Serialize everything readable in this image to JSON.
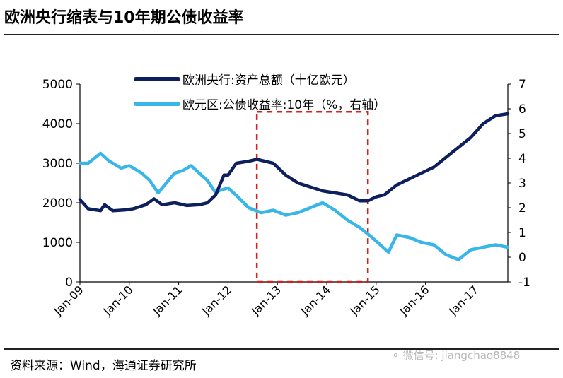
{
  "page": {
    "title": "欧洲央行缩表与10年期公债收益率",
    "source": "资料来源：Wind，海通证券研究所",
    "watermark": "微信号: jiangchao8848"
  },
  "colors": {
    "series_ecb": "#0d1f5c",
    "series_yield": "#38b6e8",
    "highlight_box": "#d62020",
    "axis": "#000000"
  },
  "chart_data": {
    "type": "line",
    "x_tick_labels": [
      "Jan-09",
      "Jan-10",
      "Jan-11",
      "Jan-12",
      "Jan-13",
      "Jan-14",
      "Jan-15",
      "Jan-16",
      "Jan-17"
    ],
    "y_left": {
      "ticks": [
        0,
        1000,
        2000,
        3000,
        4000,
        5000
      ],
      "ylim": [
        0,
        5000
      ]
    },
    "y_right": {
      "ticks": [
        -1,
        0,
        1,
        2,
        3,
        4,
        5,
        6,
        7
      ],
      "ylim": [
        -1,
        7
      ]
    },
    "xlim": [
      "2009-01",
      "2017-09"
    ],
    "highlight_box": {
      "x_range": [
        "2012-08",
        "2014-11"
      ],
      "y_range_left": [
        0,
        4300
      ],
      "style": "dashed"
    },
    "legend_position": "top-center",
    "series": [
      {
        "name": "欧洲央行:资产总额（十亿欧元）",
        "axis": "left",
        "points": [
          [
            "2009-01",
            2080
          ],
          [
            "2009-03",
            1850
          ],
          [
            "2009-06",
            1800
          ],
          [
            "2009-07",
            1950
          ],
          [
            "2009-09",
            1800
          ],
          [
            "2009-12",
            1820
          ],
          [
            "2010-02",
            1850
          ],
          [
            "2010-05",
            1950
          ],
          [
            "2010-07",
            2100
          ],
          [
            "2010-09",
            1950
          ],
          [
            "2010-12",
            2000
          ],
          [
            "2011-03",
            1930
          ],
          [
            "2011-06",
            1950
          ],
          [
            "2011-08",
            2000
          ],
          [
            "2011-10",
            2200
          ],
          [
            "2011-12",
            2700
          ],
          [
            "2012-01",
            2700
          ],
          [
            "2012-03",
            3000
          ],
          [
            "2012-06",
            3050
          ],
          [
            "2012-08",
            3100
          ],
          [
            "2012-10",
            3050
          ],
          [
            "2012-12",
            3000
          ],
          [
            "2013-03",
            2700
          ],
          [
            "2013-06",
            2500
          ],
          [
            "2013-09",
            2400
          ],
          [
            "2013-12",
            2300
          ],
          [
            "2014-03",
            2250
          ],
          [
            "2014-06",
            2200
          ],
          [
            "2014-09",
            2050
          ],
          [
            "2014-11",
            2050
          ],
          [
            "2015-01",
            2150
          ],
          [
            "2015-03",
            2200
          ],
          [
            "2015-06",
            2450
          ],
          [
            "2015-09",
            2600
          ],
          [
            "2015-12",
            2750
          ],
          [
            "2016-03",
            2900
          ],
          [
            "2016-06",
            3150
          ],
          [
            "2016-09",
            3400
          ],
          [
            "2016-12",
            3650
          ],
          [
            "2017-03",
            4000
          ],
          [
            "2017-06",
            4200
          ],
          [
            "2017-09",
            4250
          ]
        ]
      },
      {
        "name": "欧元区:公债收益率:10年（%，右轴）",
        "axis": "right",
        "points": [
          [
            "2009-01",
            3.8
          ],
          [
            "2009-03",
            3.8
          ],
          [
            "2009-06",
            4.2
          ],
          [
            "2009-08",
            3.9
          ],
          [
            "2009-11",
            3.6
          ],
          [
            "2010-01",
            3.7
          ],
          [
            "2010-04",
            3.4
          ],
          [
            "2010-06",
            3.1
          ],
          [
            "2010-08",
            2.6
          ],
          [
            "2010-10",
            3.0
          ],
          [
            "2010-12",
            3.4
          ],
          [
            "2011-02",
            3.5
          ],
          [
            "2011-04",
            3.7
          ],
          [
            "2011-06",
            3.4
          ],
          [
            "2011-08",
            3.1
          ],
          [
            "2011-10",
            2.6
          ],
          [
            "2011-11",
            2.7
          ],
          [
            "2012-01",
            2.8
          ],
          [
            "2012-03",
            2.5
          ],
          [
            "2012-06",
            2.0
          ],
          [
            "2012-09",
            1.8
          ],
          [
            "2012-12",
            1.9
          ],
          [
            "2013-03",
            1.7
          ],
          [
            "2013-06",
            1.8
          ],
          [
            "2013-09",
            2.0
          ],
          [
            "2013-12",
            2.2
          ],
          [
            "2014-03",
            1.9
          ],
          [
            "2014-06",
            1.5
          ],
          [
            "2014-09",
            1.2
          ],
          [
            "2014-12",
            0.8
          ],
          [
            "2015-02",
            0.5
          ],
          [
            "2015-04",
            0.2
          ],
          [
            "2015-06",
            0.9
          ],
          [
            "2015-09",
            0.8
          ],
          [
            "2015-12",
            0.6
          ],
          [
            "2016-03",
            0.5
          ],
          [
            "2016-06",
            0.1
          ],
          [
            "2016-09",
            -0.1
          ],
          [
            "2016-12",
            0.3
          ],
          [
            "2017-03",
            0.4
          ],
          [
            "2017-06",
            0.5
          ],
          [
            "2017-09",
            0.4
          ]
        ]
      }
    ]
  }
}
